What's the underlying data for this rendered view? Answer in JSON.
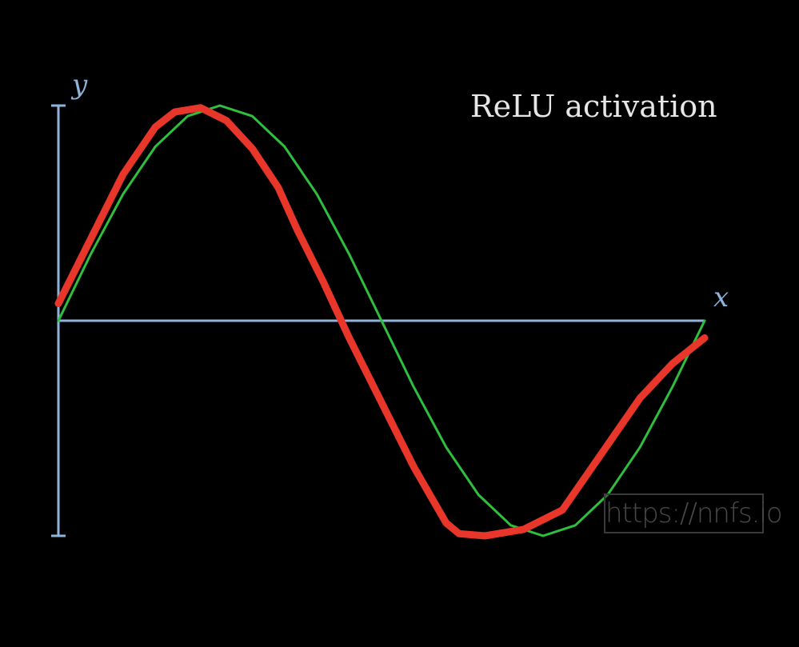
{
  "chart_data": {
    "type": "line",
    "title": "ReLU activation",
    "xlabel": "x",
    "ylabel": "y",
    "xlim": [
      0,
      1
    ],
    "ylim": [
      -1,
      1
    ],
    "grid": false,
    "legend": "none",
    "series": [
      {
        "color": "#2fbf3f",
        "x": [
          0,
          0.05,
          0.1,
          0.15,
          0.2,
          0.25,
          0.3,
          0.35,
          0.4,
          0.45,
          0.5,
          0.55,
          0.6,
          0.65,
          0.7,
          0.75,
          0.8,
          0.85,
          0.9,
          0.95,
          1.0
        ],
        "y": [
          0,
          0.309,
          0.588,
          0.809,
          0.951,
          1.0,
          0.951,
          0.809,
          0.588,
          0.309,
          0,
          -0.309,
          -0.588,
          -0.809,
          -0.951,
          -1.0,
          -0.951,
          -0.809,
          -0.588,
          -0.309,
          0
        ]
      },
      {
        "color": "#e8372a",
        "x": [
          0,
          0.05,
          0.1,
          0.15,
          0.18,
          0.22,
          0.26,
          0.3,
          0.34,
          0.37,
          0.41,
          0.45,
          0.5,
          0.55,
          0.6,
          0.62,
          0.66,
          0.72,
          0.78,
          0.84,
          0.9,
          0.95,
          1.0
        ],
        "y": [
          0.08,
          0.38,
          0.68,
          0.9,
          0.97,
          0.99,
          0.93,
          0.8,
          0.62,
          0.42,
          0.18,
          -0.08,
          -0.38,
          -0.68,
          -0.94,
          -0.99,
          -1.0,
          -0.97,
          -0.88,
          -0.62,
          -0.36,
          -0.2,
          -0.08
        ]
      }
    ]
  },
  "watermark": "https://nnfs.io",
  "colors": {
    "background": "#000000",
    "axis": "#8fb3da",
    "title": "#e6e6e6"
  }
}
